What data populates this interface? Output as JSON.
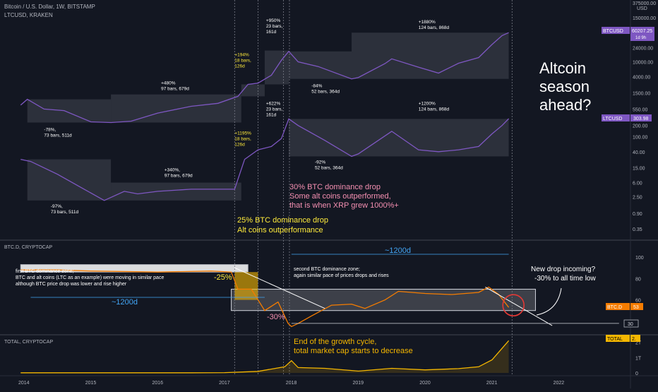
{
  "header": {
    "symbol_line": "Bitcoin / U.S. Dollar, 1W, BITSTAMP",
    "overlay_line": "LTCUSD, KRAKEN",
    "currency": "USD"
  },
  "panes": {
    "dominance_title": "BTC.D, CRYPTOCAP",
    "total_title": "TOTAL, CRYPTOCAP"
  },
  "price_badges": {
    "btc_label": "BTCUSD",
    "btc_value": "60207.25",
    "btc_countdown": "1d 9h",
    "ltc_label": "LTCUSD",
    "ltc_value": "303.98",
    "btcd_label": "BTC.D",
    "btcd_value": "53",
    "total_label": "TOTAL",
    "total_value": "2.",
    "level_30": "30"
  },
  "axes": {
    "main_ticks": [
      "375000.00",
      "150000.00",
      "64000.00",
      "24000.00",
      "10000.00",
      "4000.00",
      "1500.00",
      "550.00",
      "200.00",
      "100.00",
      "40.00",
      "15.00",
      "6.00",
      "2.50",
      "0.90",
      "0.35"
    ],
    "dominance_ticks": [
      "100",
      "80",
      "60"
    ],
    "total_ticks": [
      "2T",
      "1T",
      "0"
    ],
    "years": [
      "2014",
      "2015",
      "2016",
      "2017",
      "2018",
      "2019",
      "2020",
      "2021",
      "2022"
    ]
  },
  "colors": {
    "background": "#131722",
    "btc_line": "#7e57c2",
    "ltc_line": "#7e57c2",
    "dominance_line": "#f57c00",
    "total_line": "#f5b700",
    "yellow_text": "#ffeb3b",
    "pink_text": "#f48fb1",
    "blue_text": "#42a5f5",
    "range_box": "rgba(120,123,134,0.25)"
  },
  "annotations": {
    "btc_bear_2014": [
      "-78%,",
      "73 bars, 511d"
    ],
    "btc_bull_2015": [
      "+480%",
      "97 bars, 679d"
    ],
    "btc_run_2017a": [
      "+194%",
      "18 bars,",
      "126d"
    ],
    "btc_run_2017b": [
      "+950%",
      "23 bars,",
      "161d"
    ],
    "btc_bear_2018": [
      "-84%",
      "52 bars, 364d"
    ],
    "btc_bull_2019": [
      "+1880%",
      "124 bars, 868d"
    ],
    "ltc_bear_2014": [
      "-97%,",
      "73 bars, 511d"
    ],
    "ltc_bull_2015": [
      "+340%,",
      "97 bars, 679d"
    ],
    "ltc_run_2017a": [
      "+1195%",
      "18 bars,",
      "126d"
    ],
    "ltc_run_2017b": [
      "+622%",
      "23 bars,",
      "161d"
    ],
    "ltc_bear_2018": [
      "-92%",
      "52 bars, 364d"
    ],
    "ltc_bull_2019": [
      "+1200%",
      "124 bars, 868d"
    ],
    "altseason": [
      "Altcoin",
      "season",
      "ahead?"
    ],
    "pink_note": [
      "30% BTC dominance drop",
      "Some alt coins outperformed,",
      "that is when XRP grew 1000%+"
    ],
    "yellow_note": [
      "25% BTC dominance drop",
      "Alt coins outperformance"
    ],
    "zone1": [
      "first BTC dominance zone;",
      "BTC and alt coins (LTC as an example) were moving in similar pace",
      "although BTC price drop was lower and rise higher"
    ],
    "zone2": [
      "second BTC dominance zone;",
      "again similar pace of prices drops and rises"
    ],
    "new_drop": [
      "New drop incoming?",
      "-30% to all time low"
    ],
    "growth_end": [
      "End of the growth cycle,",
      "total market cap starts to decrease"
    ],
    "days_left": "~1200d",
    "days_right": "~1200d",
    "minus25": "-25%",
    "minus30": "-30%"
  },
  "chart_data": [
    {
      "type": "line",
      "name_text": "Bitcoin / U.S. Dollar, 1W, BITSTAMP",
      "log_scale": true,
      "series": [
        {
          "name": "BTCUSD",
          "color": "#7e57c2",
          "x": [
            2013.95,
            2014.05,
            2014.3,
            2014.6,
            2015.0,
            2015.3,
            2015.6,
            2016.0,
            2016.5,
            2016.9,
            2017.2,
            2017.35,
            2017.5,
            2017.7,
            2017.85,
            2017.96,
            2018.1,
            2018.4,
            2018.9,
            2019.0,
            2019.4,
            2019.5,
            2019.9,
            2020.2,
            2020.5,
            2020.8,
            2021.0,
            2021.15,
            2021.25
          ],
          "y": [
            700,
            1000,
            550,
            500,
            250,
            240,
            260,
            430,
            650,
            780,
            1200,
            2500,
            2700,
            4400,
            11000,
            19000,
            10000,
            7500,
            3500,
            3800,
            9000,
            12000,
            7200,
            5000,
            9200,
            13000,
            29000,
            50000,
            60207
          ]
        }
      ]
    },
    {
      "type": "line",
      "name_text": "LTCUSD, KRAKEN",
      "log_scale": true,
      "series": [
        {
          "name": "LTCUSD",
          "color": "#7e57c2",
          "x": [
            2013.95,
            2014.1,
            2014.5,
            2014.9,
            2015.2,
            2015.5,
            2015.7,
            2016.0,
            2016.5,
            2016.9,
            2017.15,
            2017.3,
            2017.5,
            2017.7,
            2017.85,
            2017.96,
            2018.1,
            2018.5,
            2018.9,
            2019.0,
            2019.5,
            2019.9,
            2020.2,
            2020.5,
            2020.8,
            2021.0,
            2021.15,
            2021.25
          ],
          "y": [
            25,
            22,
            10,
            4,
            2.0,
            3.5,
            3,
            3.5,
            4,
            4,
            4,
            25,
            45,
            55,
            90,
            300,
            200,
            80,
            30,
            35,
            140,
            45,
            40,
            45,
            55,
            120,
            200,
            303.98
          ]
        }
      ]
    },
    {
      "type": "line",
      "name_text": "BTC.D, CRYPTOCAP",
      "ylim": [
        30,
        100
      ],
      "series": [
        {
          "name": "BTC.D",
          "color": "#f57c00",
          "x": [
            2013.95,
            2014.5,
            2015.0,
            2016.0,
            2016.8,
            2017.1,
            2017.2,
            2017.4,
            2017.6,
            2017.8,
            2017.95,
            2018.0,
            2018.1,
            2018.3,
            2018.6,
            2018.9,
            2019.1,
            2019.4,
            2019.6,
            2020.0,
            2020.4,
            2020.8,
            2020.95,
            2021.1,
            2021.25
          ],
          "y": [
            88,
            88,
            87,
            86,
            87,
            86,
            70,
            70,
            50,
            58,
            38,
            35,
            38,
            45,
            55,
            56,
            52,
            60,
            68,
            66,
            65,
            67,
            72,
            65,
            53
          ]
        }
      ]
    },
    {
      "type": "area",
      "name_text": "TOTAL, CRYPTOCAP",
      "ylim": [
        0,
        2.3
      ],
      "series": [
        {
          "name": "TOTAL",
          "color": "#f5b700",
          "x": [
            2013.95,
            2016.5,
            2017.0,
            2017.5,
            2017.9,
            2018.0,
            2018.1,
            2018.5,
            2019.0,
            2019.5,
            2020.0,
            2020.5,
            2020.8,
            2021.0,
            2021.15,
            2021.25
          ],
          "y": [
            0.01,
            0.01,
            0.02,
            0.1,
            0.4,
            0.8,
            0.35,
            0.3,
            0.12,
            0.3,
            0.2,
            0.28,
            0.4,
            0.85,
            1.6,
            2.1
          ]
        }
      ]
    }
  ]
}
